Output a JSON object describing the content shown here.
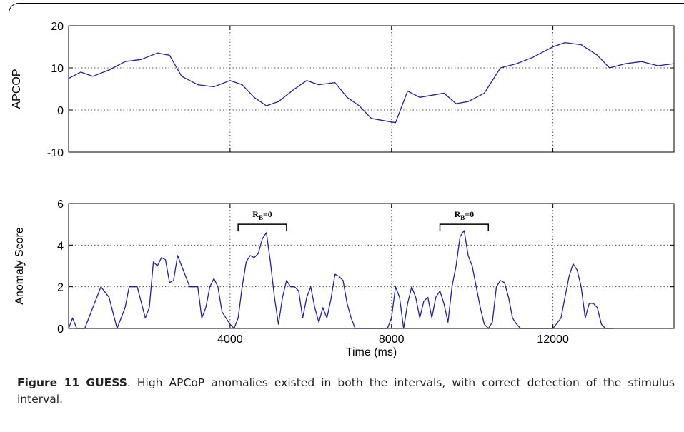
{
  "caption": {
    "label": "Figure 11",
    "title": "GUESS",
    "text": ". High APCoP anomalies existed in both the intervals, with correct detection of the stimulus interval."
  },
  "colors": {
    "line": "#1f1fa8",
    "axis": "#000000",
    "grid": "#555555"
  },
  "chart_data": [
    {
      "type": "line",
      "title": "",
      "xlabel": "",
      "ylabel": "APCOP",
      "xlim": [
        0,
        15000
      ],
      "ylim": [
        -10,
        20
      ],
      "yticks": [
        -10,
        0,
        10,
        20
      ],
      "xgrid": [
        4000,
        8000,
        12000
      ],
      "grid": true,
      "series": [
        {
          "x": [
            0,
            300,
            600,
            1000,
            1400,
            1800,
            2200,
            2500,
            2800,
            3200,
            3600,
            4000,
            4300,
            4600,
            4900,
            5200,
            5600,
            5900,
            6200,
            6600,
            6900,
            7200,
            7500,
            7800,
            8100,
            8400,
            8700,
            9000,
            9300,
            9600,
            9900,
            10300,
            10700,
            11100,
            11500,
            12000,
            12300,
            12700,
            13100,
            13400,
            13800,
            14200,
            14600,
            15000
          ],
          "y": [
            7.5,
            9,
            8,
            9.5,
            11.5,
            12,
            13.5,
            13,
            8,
            6,
            5.5,
            7,
            6,
            3,
            1,
            2,
            5,
            7,
            6,
            6.5,
            3,
            1,
            -2,
            -2.5,
            -3,
            4.5,
            3,
            3.5,
            4,
            1.5,
            2,
            4,
            10,
            11,
            12.5,
            15,
            16,
            15.5,
            13,
            10,
            11,
            11.5,
            10.5,
            11
          ]
        }
      ]
    },
    {
      "type": "line",
      "title": "",
      "xlabel": "Time (ms)",
      "ylabel": "Anomaly Score",
      "xlim": [
        0,
        15000
      ],
      "ylim": [
        0,
        6
      ],
      "yticks": [
        0,
        2,
        4,
        6
      ],
      "xticks": [
        4000,
        8000,
        12000
      ],
      "grid": true,
      "annotations": [
        {
          "text_main": "R",
          "text_sub": "B",
          "text_rest": "=0",
          "x_start": 4200,
          "x_end": 5400,
          "y": 5.0
        },
        {
          "text_main": "R",
          "text_sub": "B",
          "text_rest": "=0",
          "x_start": 9200,
          "x_end": 10400,
          "y": 5.0
        }
      ],
      "series": [
        {
          "x": [
            0,
            100,
            200,
            300,
            400,
            600,
            800,
            1000,
            1200,
            1400,
            1500,
            1700,
            1900,
            2000,
            2100,
            2200,
            2300,
            2400,
            2500,
            2600,
            2700,
            2800,
            3000,
            3200,
            3300,
            3400,
            3500,
            3600,
            3700,
            3800,
            4000,
            4100,
            4200,
            4300,
            4400,
            4500,
            4600,
            4700,
            4800,
            4900,
            5000,
            5100,
            5200,
            5300,
            5400,
            5500,
            5600,
            5700,
            5800,
            5900,
            6000,
            6100,
            6200,
            6300,
            6400,
            6500,
            6600,
            6700,
            6800,
            6900,
            7000,
            7100,
            7400,
            7500,
            7700,
            7900,
            8000,
            8100,
            8200,
            8300,
            8400,
            8500,
            8600,
            8700,
            8800,
            8900,
            9000,
            9100,
            9200,
            9300,
            9400,
            9500,
            9600,
            9700,
            9800,
            9900,
            10000,
            10100,
            10200,
            10300,
            10400,
            10500,
            10600,
            10700,
            10800,
            10900,
            11000,
            11100,
            11200,
            11300,
            11400,
            11500,
            12000,
            12200,
            12300,
            12400,
            12500,
            12600,
            12700,
            12800,
            12900,
            13000,
            13100,
            13200,
            13300,
            13400,
            13500
          ],
          "y": [
            0,
            0.5,
            0,
            0,
            0,
            1,
            2,
            1.5,
            0,
            1,
            2,
            2,
            0.5,
            1,
            3.2,
            3,
            3.4,
            3.3,
            2.2,
            2.3,
            3.5,
            3,
            2,
            2,
            0.5,
            1,
            2,
            2.4,
            2,
            0.8,
            0.2,
            0,
            0.5,
            2,
            3.2,
            3.5,
            3.4,
            3.6,
            4.3,
            4.6,
            3.2,
            1.5,
            0.2,
            1.5,
            2.3,
            2,
            2,
            1.8,
            0.5,
            1.5,
            2,
            1,
            0.3,
            1,
            0.5,
            1.4,
            2.6,
            2.5,
            2.3,
            1.2,
            0.5,
            0,
            0,
            0,
            0,
            0,
            0.5,
            2,
            1.5,
            0,
            1.2,
            2,
            1.5,
            0.5,
            1.3,
            1.5,
            0.5,
            1.5,
            1.8,
            1.2,
            0.3,
            2,
            3,
            4.4,
            4.7,
            3.5,
            3,
            2,
            1,
            0.2,
            0,
            0.3,
            2,
            2.3,
            2.2,
            1.5,
            0.5,
            0.2,
            0,
            0,
            0,
            0,
            0,
            0.5,
            1.5,
            2.5,
            3.1,
            2.8,
            2,
            0.5,
            1.2,
            1.2,
            1,
            0.2,
            0,
            0,
            0
          ]
        }
      ]
    }
  ]
}
